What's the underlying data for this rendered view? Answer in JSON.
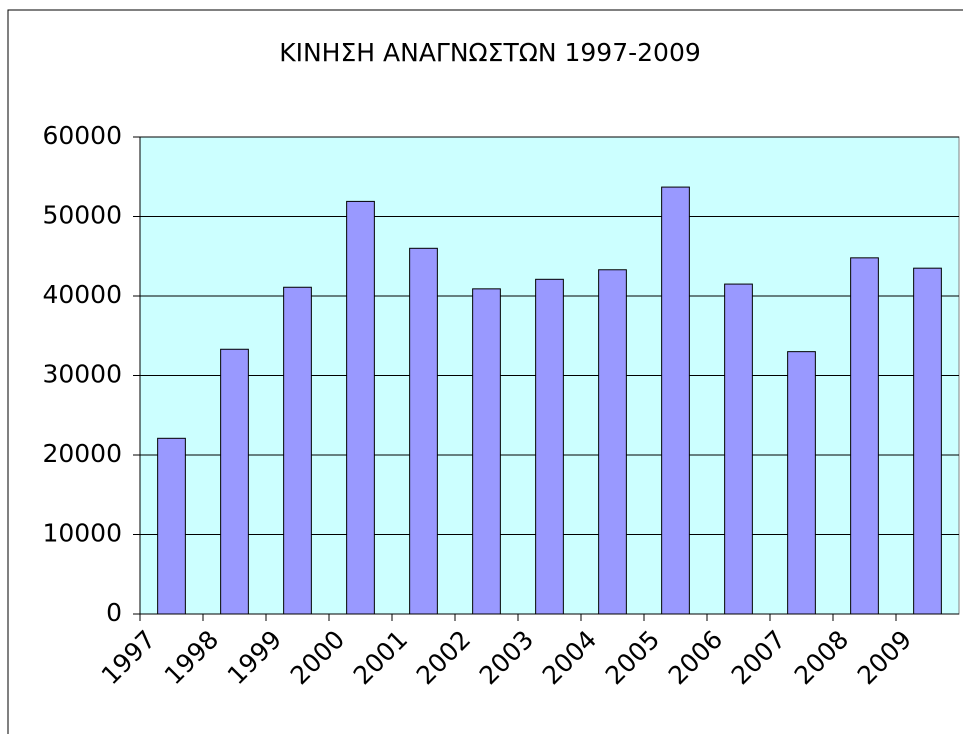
{
  "chart_data": {
    "type": "bar",
    "title": "ΚΙΝΗΣΗ ΑΝΑΓΝΩΣΤΩΝ 1997-2009",
    "categories": [
      "1997",
      "1998",
      "1999",
      "2000",
      "2001",
      "2002",
      "2003",
      "2004",
      "2005",
      "2006",
      "2007",
      "2008",
      "2009"
    ],
    "values": [
      22100,
      33300,
      41100,
      51900,
      46000,
      40900,
      42100,
      43300,
      53700,
      41500,
      33000,
      44800,
      43500
    ],
    "color": "#9999ff",
    "plot_background": "#ccffff",
    "ylim": [
      0,
      60000
    ],
    "yticks": [
      0,
      10000,
      20000,
      30000,
      40000,
      50000,
      60000
    ],
    "grid": true
  }
}
